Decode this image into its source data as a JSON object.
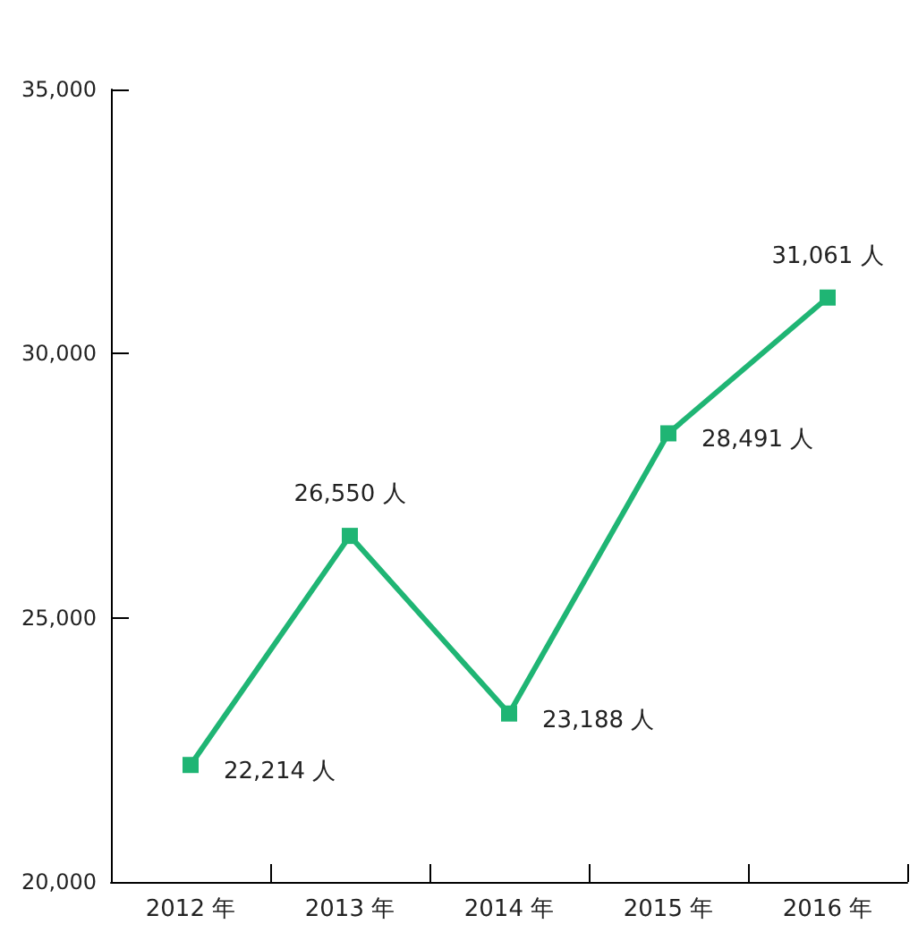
{
  "chart_data": {
    "type": "line",
    "categories": [
      "2012 年",
      "2013 年",
      "2014 年",
      "2015 年",
      "2016 年"
    ],
    "series": [
      {
        "color": "#1fb574",
        "values": [
          22214,
          26550,
          23188,
          28491,
          31061
        ],
        "value_labels": [
          "22,214 人",
          "26,550 人",
          "23,188 人",
          "28,491 人",
          "31,061 人"
        ]
      }
    ],
    "ylim": [
      20000,
      35000
    ],
    "yticks": [
      {
        "value": 20000,
        "label": "20,000"
      },
      {
        "value": 25000,
        "label": "25,000"
      },
      {
        "value": 30000,
        "label": "30,000"
      },
      {
        "value": 35000,
        "label": "35,000"
      }
    ],
    "grid": false,
    "marker": "square",
    "line_style": "solid"
  }
}
